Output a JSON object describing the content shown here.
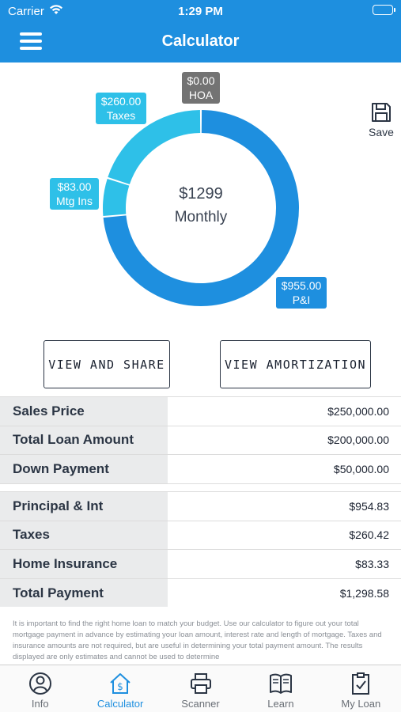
{
  "status_bar": {
    "carrier": "Carrier",
    "time": "1:29 PM"
  },
  "nav": {
    "title": "Calculator"
  },
  "chart_data": {
    "type": "donut",
    "center_amount": "$1299",
    "center_label": "Monthly",
    "slices": [
      {
        "name": "P&I",
        "label": "$955.00",
        "value": 955.0,
        "color": "#1e8fdf"
      },
      {
        "name": "Mtg Ins",
        "label": "$83.00",
        "value": 83.0,
        "color": "#2ec0e8"
      },
      {
        "name": "Taxes",
        "label": "$260.00",
        "value": 260.0,
        "color": "#2ec0e8"
      },
      {
        "name": "HOA",
        "label": "$0.00",
        "value": 0.0,
        "color": "#737373"
      }
    ]
  },
  "save": {
    "label": "Save"
  },
  "buttons": {
    "share": "VIEW AND SHARE",
    "amortization": "VIEW AMORTIZATION"
  },
  "loan_table": [
    {
      "label": "Sales Price",
      "value": "$250,000.00"
    },
    {
      "label": "Total Loan Amount",
      "value": "$200,000.00"
    },
    {
      "label": "Down Payment",
      "value": "$50,000.00"
    }
  ],
  "payment_table": [
    {
      "label": "Principal & Int",
      "value": "$954.83"
    },
    {
      "label": "Taxes",
      "value": "$260.42"
    },
    {
      "label": "Home Insurance",
      "value": "$83.33"
    },
    {
      "label": "Total Payment",
      "value": "$1,298.58"
    }
  ],
  "disclaimer": "It is important to find the right home loan to match your budget. Use our calculator to figure out your total mortgage payment in advance by estimating your loan amount, interest rate and length of mortgage. Taxes and insurance amounts are not required, but are useful in determining your total payment amount. The results displayed are only estimates and cannot be used to determine",
  "tabs": [
    {
      "label": "Info",
      "icon": "person-circle-icon"
    },
    {
      "label": "Calculator",
      "icon": "house-dollar-icon",
      "active": true
    },
    {
      "label": "Scanner",
      "icon": "printer-icon"
    },
    {
      "label": "Learn",
      "icon": "book-icon"
    },
    {
      "label": "My Loan",
      "icon": "clipboard-check-icon"
    }
  ]
}
